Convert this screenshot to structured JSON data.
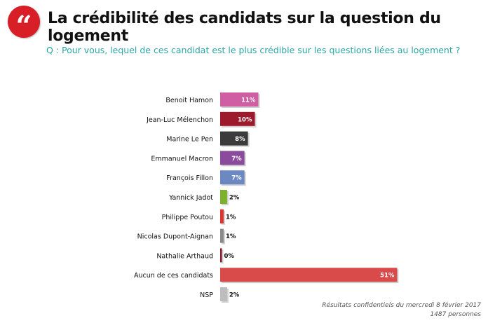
{
  "header": {
    "logo_glyph": "“",
    "title": "La crédibilité des candidats sur la question du logement",
    "question": "Q : Pour vous, lequel de ces candidat est le plus crédible sur les questions liées au logement ?"
  },
  "chart_data": {
    "type": "bar",
    "orientation": "horizontal",
    "title": "La crédibilité des candidats sur la question du logement",
    "categories": [
      "Benoit Hamon",
      "Jean-Luc Mélenchon",
      "Marine Le Pen",
      "Emmanuel Macron",
      "François Fillon",
      "Yannick Jadot",
      "Philippe Poutou",
      "Nicolas Dupont-Aignan",
      "Nathalie Arthaud",
      "Aucun de ces candidats",
      "NSP"
    ],
    "values": [
      11,
      10,
      8,
      7,
      7,
      2,
      1,
      1,
      0,
      51,
      2
    ],
    "labels": [
      "11%",
      "10%",
      "8%",
      "7%",
      "7%",
      "2%",
      "1%",
      "1%",
      "0%",
      "51%",
      "2%"
    ],
    "colors": [
      "#cf5ea3",
      "#9c1a2b",
      "#3b3b3b",
      "#8a4b9c",
      "#6b89c0",
      "#7db12b",
      "#e0322f",
      "#8a8a8a",
      "#8b1a2a",
      "#d94b4b",
      "#bdbdbd"
    ],
    "unit": "%",
    "xlim": [
      0,
      55
    ],
    "grid": false
  },
  "footer": {
    "line1": "Résultats confidentiels du mercredi 8 février 2017",
    "line2": "1487 personnes"
  }
}
